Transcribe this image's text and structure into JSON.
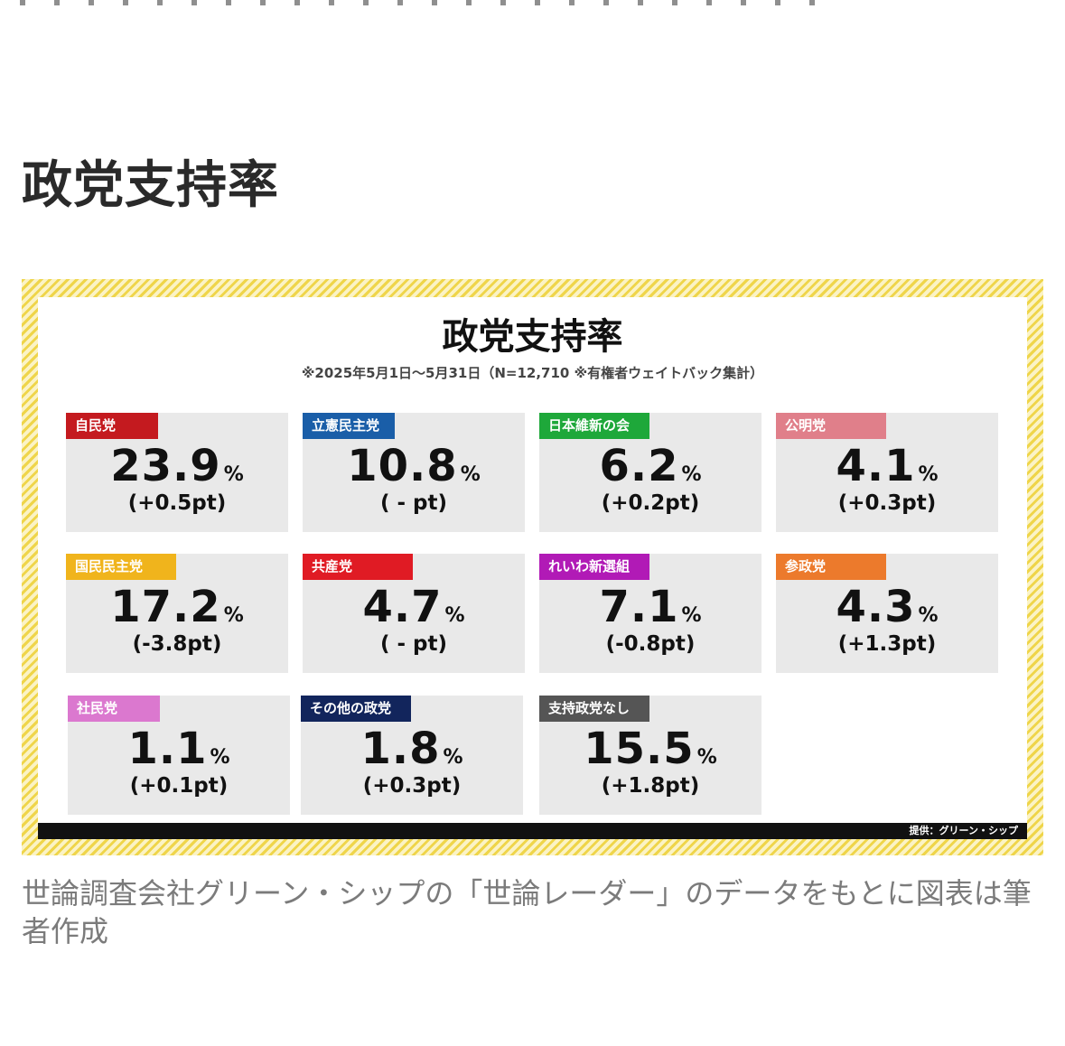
{
  "page": {
    "heading": "政党支持率",
    "caption": "世論調査会社グリーン・シップの「世論レーダー」のデータをもとに図表は筆者作成"
  },
  "figure": {
    "title": "政党支持率",
    "subtitle": "※2025年5月1日〜5月31日（N=12,710 ※有権者ウェイトバック集計）",
    "credit": "提供：グリーン・シップ",
    "unit": "%",
    "colors": {
      "border_stripe": "#efd54a",
      "tile_background": "#e9e9e9"
    },
    "parties": [
      {
        "name": "自民党",
        "value": "23.9",
        "change": "(+0.5pt)",
        "color": "#c41a1f"
      },
      {
        "name": "立憲民主党",
        "value": "10.8",
        "change": "( - pt)",
        "color": "#1a5ea8"
      },
      {
        "name": "日本維新の会",
        "value": "6.2",
        "change": "(+0.2pt)",
        "color": "#1ea83a"
      },
      {
        "name": "公明党",
        "value": "4.1",
        "change": "(+0.3pt)",
        "color": "#e07f8a"
      },
      {
        "name": "国民民主党",
        "value": "17.2",
        "change": "(-3.8pt)",
        "color": "#f0b41c"
      },
      {
        "name": "共産党",
        "value": "4.7",
        "change": "( - pt)",
        "color": "#e01b24"
      },
      {
        "name": "れいわ新選組",
        "value": "7.1",
        "change": "(-0.8pt)",
        "color": "#b11ab6"
      },
      {
        "name": "参政党",
        "value": "4.3",
        "change": "(+1.3pt)",
        "color": "#ec7a2c"
      },
      {
        "name": "社民党",
        "value": "1.1",
        "change": "(+0.1pt)",
        "color": "#db78cf"
      },
      {
        "name": "その他の政党",
        "value": "1.8",
        "change": "(+0.3pt)",
        "color": "#12255c"
      },
      {
        "name": "支持政党なし",
        "value": "15.5",
        "change": "(+1.8pt)",
        "color": "#555555"
      }
    ]
  }
}
